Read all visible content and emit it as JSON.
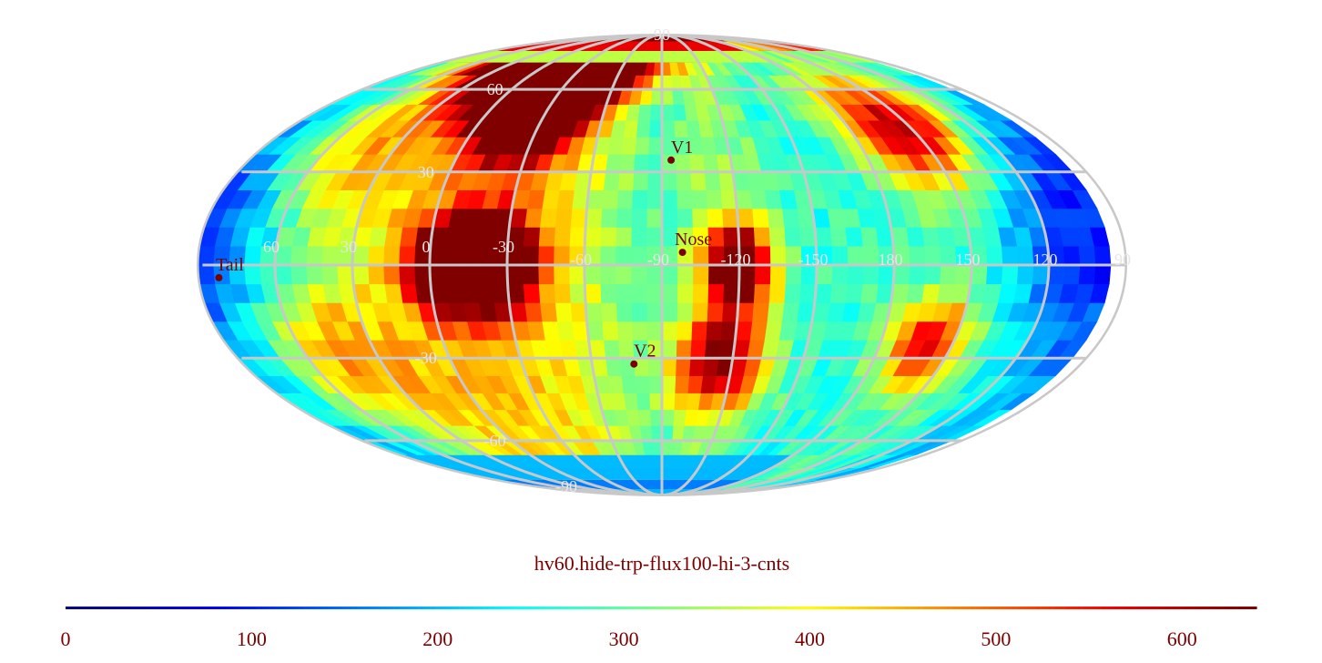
{
  "map": {
    "projection": "mollweide",
    "cell_size_deg": 6,
    "colormap": "jet",
    "grid_color": "#c8c8c8",
    "center_lon_label_deg": -90,
    "latitude_labels": [
      "90",
      "60",
      "30",
      "-30",
      "-60",
      "-90"
    ],
    "longitude_labels": [
      "60",
      "30",
      "0",
      "-30",
      "-60",
      "-90",
      "-120",
      "-150",
      "180",
      "150",
      "120",
      "90"
    ],
    "markers": [
      {
        "name": "V1",
        "lon": -94,
        "lat": 34,
        "color": "#7a0000"
      },
      {
        "name": "Nose",
        "lon": -98,
        "lat": 4,
        "color": "#7a0000"
      },
      {
        "name": "V2",
        "lon": -78,
        "lat": -32,
        "color": "#7a0000"
      },
      {
        "name": "Tail",
        "lon": 82,
        "lat": -4,
        "color": "#7a0000"
      }
    ],
    "features": [
      {
        "kind": "band",
        "center_lon": -20,
        "lon_width": 35,
        "value": 230
      },
      {
        "kind": "band",
        "center_lon": -115,
        "lon_width": 18,
        "value": 180
      },
      {
        "kind": "band",
        "center_lon": 145,
        "lon_width": 28,
        "value": 180
      },
      {
        "kind": "band",
        "center_lon": 30,
        "lon_width": 40,
        "value": 150
      },
      {
        "kind": "band",
        "center_lon": -65,
        "lon_width": 25,
        "value": 130
      },
      {
        "kind": "band",
        "center_lon": -160,
        "lon_width": 25,
        "value": 120
      },
      {
        "kind": "blob",
        "lon": -15,
        "lat": 65,
        "value": 480,
        "radius": 14
      },
      {
        "kind": "blob",
        "lon": -25,
        "lat": 50,
        "value": 400,
        "radius": 12
      },
      {
        "kind": "blob",
        "lon": -25,
        "lat": 0,
        "value": 600,
        "radius": 10
      },
      {
        "kind": "blob",
        "lon": -5,
        "lat": 0,
        "value": 420,
        "radius": 10
      },
      {
        "kind": "blob",
        "lon": -120,
        "lat": 0,
        "value": 440,
        "radius": 9
      },
      {
        "kind": "blob",
        "lon": -115,
        "lat": -30,
        "value": 320,
        "radius": 12
      },
      {
        "kind": "blob",
        "lon": 155,
        "lat": 45,
        "value": 340,
        "radius": 14
      },
      {
        "kind": "blob",
        "lon": 160,
        "lat": -25,
        "value": 300,
        "radius": 10
      },
      {
        "kind": "blob",
        "lon": 50,
        "lat": 40,
        "value": 170,
        "radius": 18
      },
      {
        "kind": "blob",
        "lon": 50,
        "lat": -30,
        "value": 180,
        "radius": 18
      },
      {
        "kind": "blob",
        "lon": 30,
        "lat": 80,
        "value": 260,
        "radius": 12
      },
      {
        "kind": "blob",
        "lon": -40,
        "lat": 70,
        "value": 300,
        "radius": 14
      },
      {
        "kind": "blob",
        "lon": 110,
        "lat": 10,
        "value": -120,
        "radius": 30
      }
    ],
    "base_value": 120
  },
  "title": "hv60.hide-trp-flux100-hi-3-cnts",
  "colorbar": {
    "min": 0,
    "max": 640,
    "tick_labels": [
      "0",
      "100",
      "200",
      "300",
      "400",
      "500",
      "600"
    ],
    "tick_values": [
      0,
      100,
      200,
      300,
      400,
      500,
      600
    ]
  }
}
